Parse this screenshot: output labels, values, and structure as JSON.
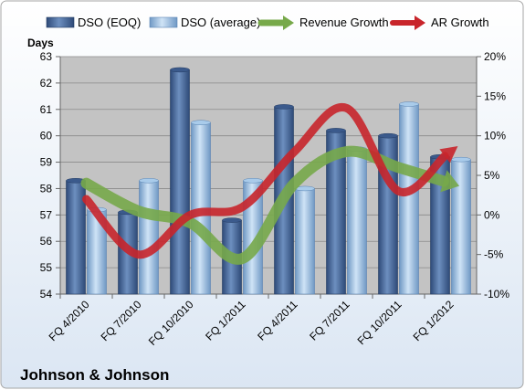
{
  "company": "Johnson & Johnson",
  "chart_data": {
    "type": "bar",
    "categories": [
      "FQ 4/2010",
      "FQ 7/2010",
      "FQ 10/2010",
      "FQ 1/2011",
      "FQ 4/2011",
      "FQ 7/2011",
      "FQ 10/2011",
      "FQ 1/2012"
    ],
    "left_axis": {
      "label": "Days",
      "ylim": [
        54,
        63
      ],
      "ticks": [
        "54",
        "55",
        "56",
        "57",
        "58",
        "59",
        "60",
        "61",
        "62",
        "63"
      ]
    },
    "right_axis": {
      "label": "",
      "ylim": [
        -10,
        20
      ],
      "ticks": [
        "-10%",
        "-5%",
        "0%",
        "5%",
        "10%",
        "15%",
        "20%"
      ]
    },
    "series": [
      {
        "name": "DSO (EOQ)",
        "type": "bar",
        "axis": "left",
        "values": [
          58.3,
          57.1,
          62.5,
          56.8,
          61.1,
          60.2,
          60.0,
          59.2
        ]
      },
      {
        "name": "DSO (average)",
        "type": "bar",
        "axis": "left",
        "values": [
          57.2,
          58.3,
          60.5,
          58.3,
          58.0,
          59.5,
          61.2,
          59.1
        ]
      },
      {
        "name": "Revenue Growth",
        "type": "line",
        "axis": "right",
        "values": [
          4.0,
          0.5,
          -1.0,
          -5.5,
          4.0,
          8.0,
          6.0,
          4.0
        ]
      },
      {
        "name": "AR Growth",
        "type": "line",
        "axis": "right",
        "values": [
          2.0,
          -5.0,
          0.0,
          1.0,
          8.0,
          13.5,
          3.0,
          8.0
        ]
      }
    ],
    "colors": {
      "dso_eoq": "#4a6a9a",
      "dso_avg": "#9cc0e2",
      "revenue_growth": "#77a94a",
      "ar_growth": "#c8252b",
      "plot_bg": "#c3c3c3"
    },
    "legend_position": "top",
    "grid": true
  }
}
